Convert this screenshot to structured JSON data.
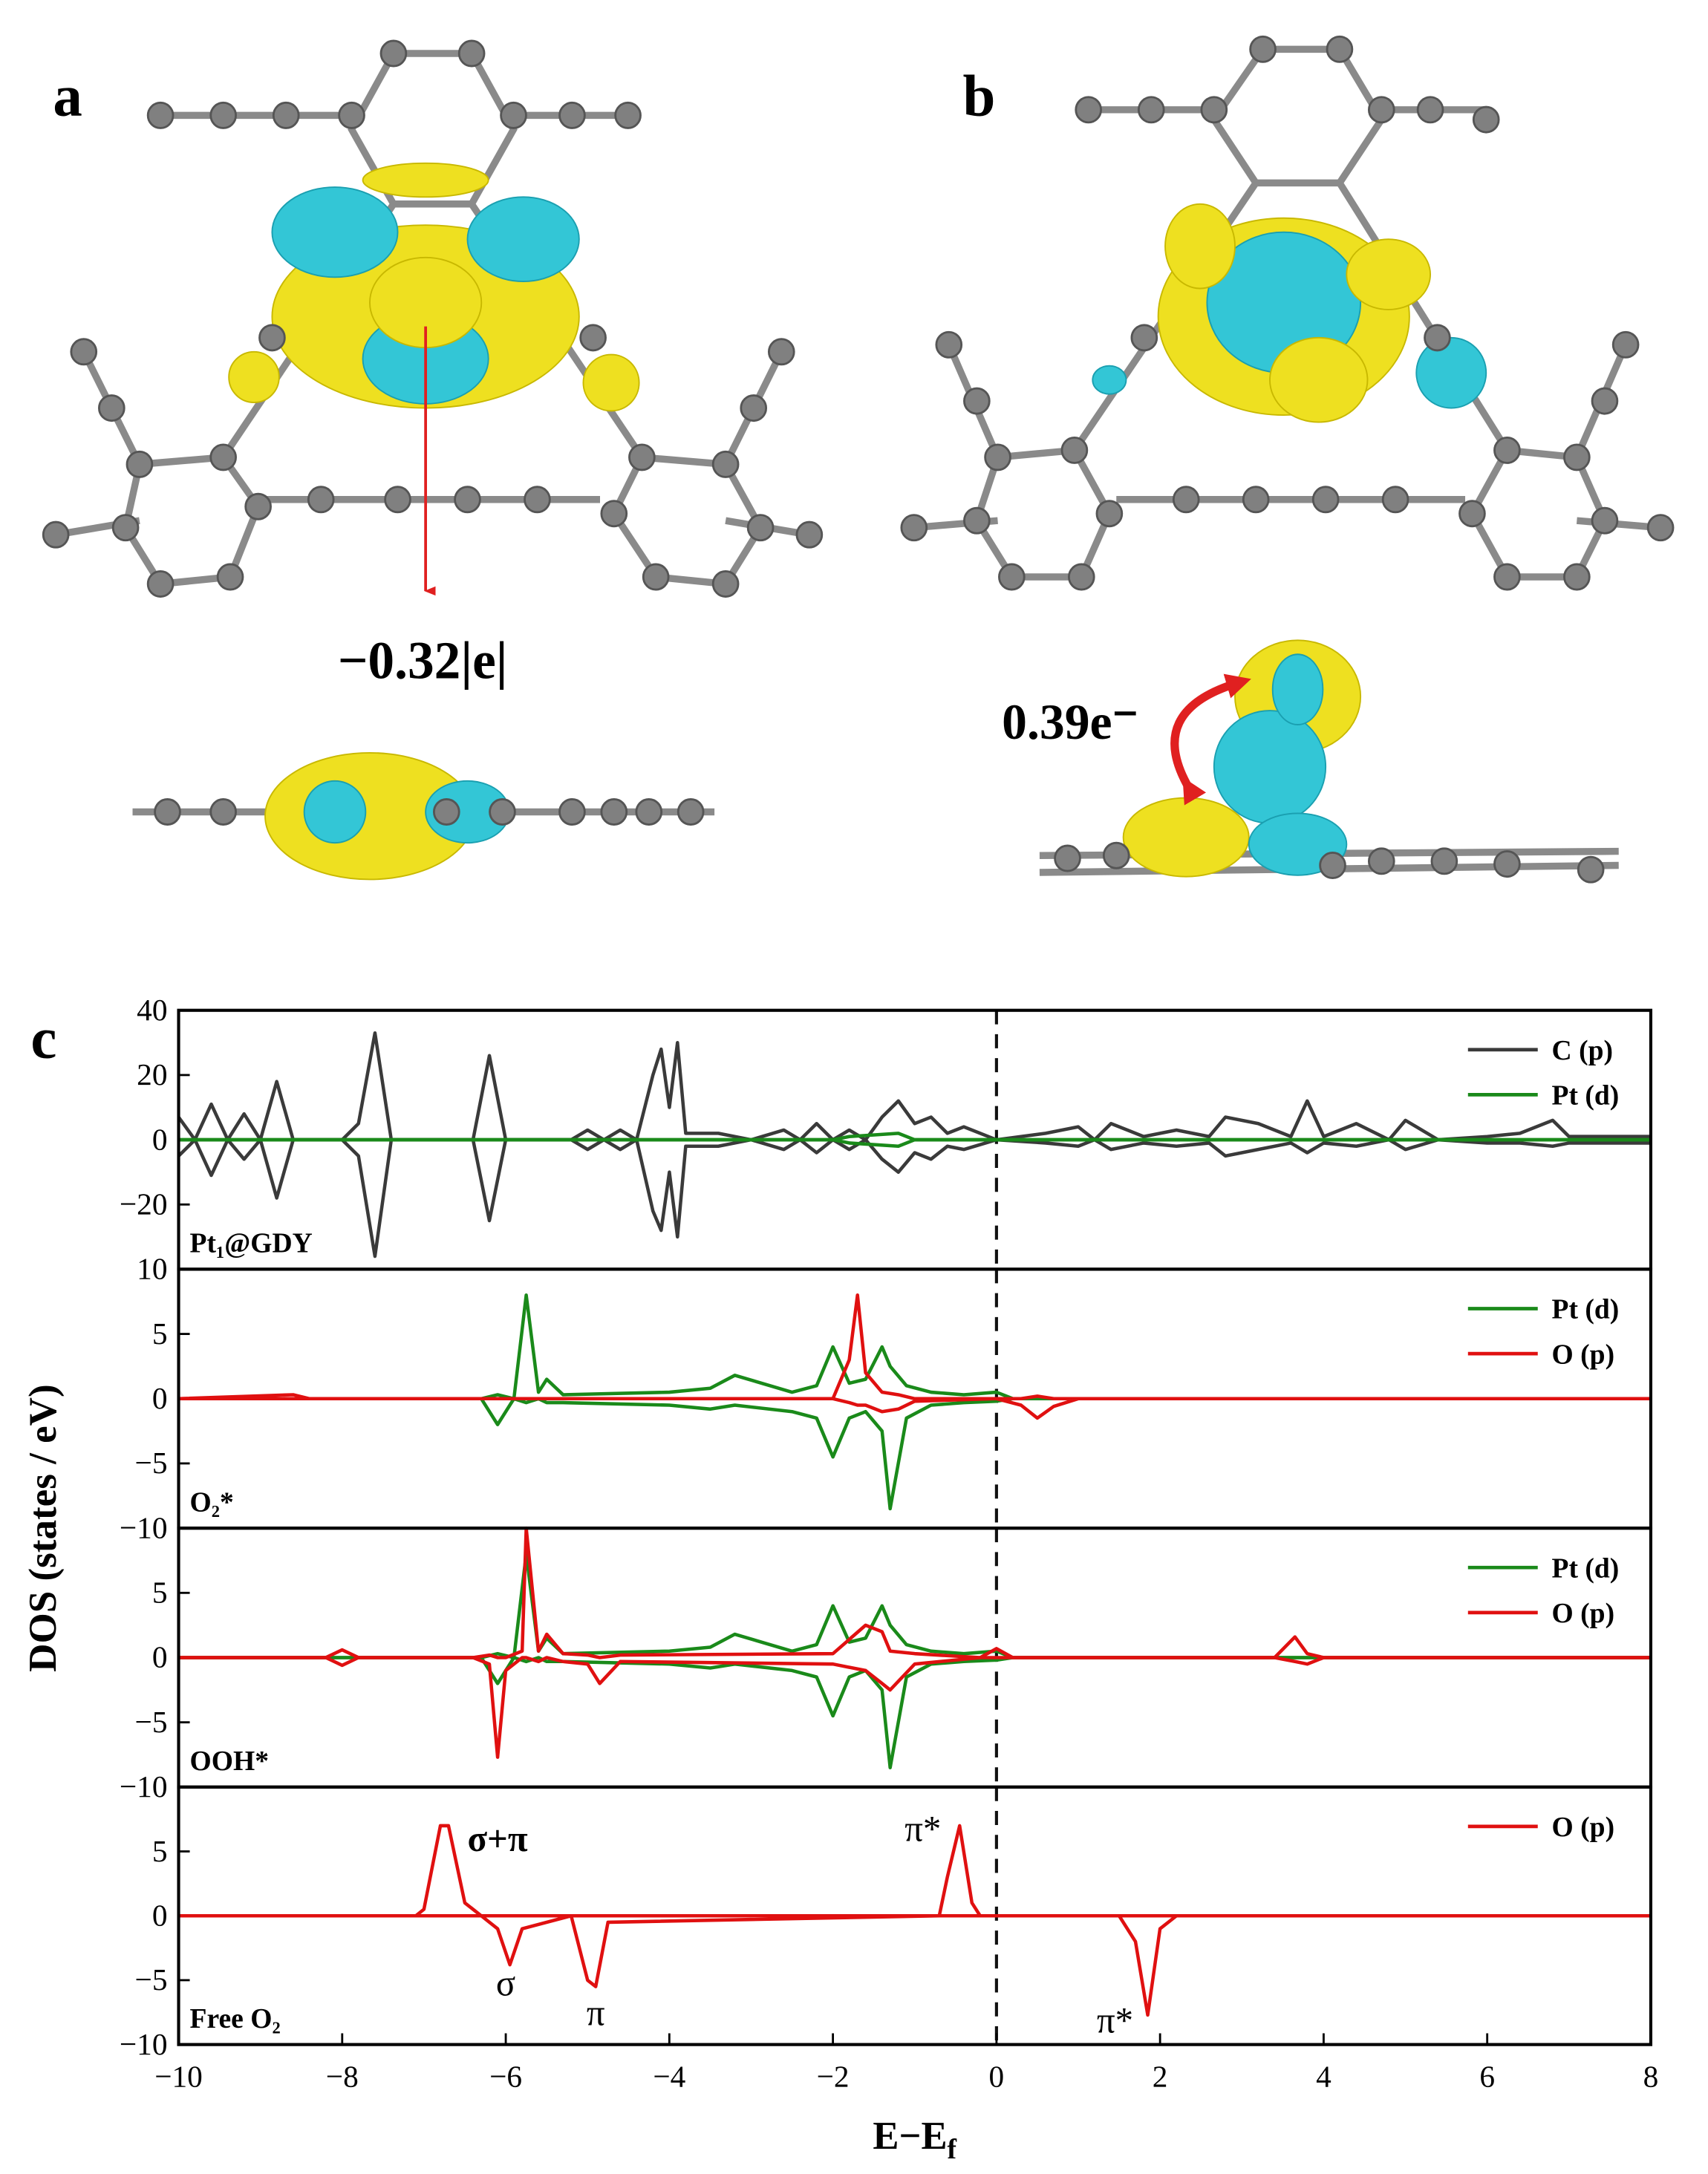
{
  "panel_labels": [
    "a",
    "b",
    "c"
  ],
  "charges": [
    "−0.32|e|",
    "0.39e⁻"
  ],
  "ylabel": "DOS (states / eV)",
  "chart_data": [
    {
      "type": "line",
      "label": "Pt₁@GDY",
      "xlim": [
        -10,
        8
      ],
      "ylim": [
        -40,
        40
      ],
      "yticks": [
        40,
        20,
        0,
        {
          "value": -20,
          "label": "−20"
        }
      ],
      "vline": 0,
      "series": [
        {
          "name": "C (p)",
          "color": "#3a3a3a",
          "x": [
            -10,
            -9.8,
            -9.6,
            -9.4,
            -9.2,
            -9.0,
            -8.8,
            -8.6,
            -8.0,
            -7.8,
            -7.6,
            -7.4,
            -6.4,
            -6.2,
            -6.0,
            -5.2,
            -5.0,
            -4.8,
            -4.6,
            -4.4,
            -4.2,
            -4.1,
            -4.0,
            -3.9,
            -3.8,
            -3.4,
            -3.0,
            -2.6,
            -2.4,
            -2.2,
            -2.0,
            -1.8,
            -1.6,
            -1.4,
            -1.2,
            -1.0,
            -0.8,
            -0.6,
            -0.4,
            0,
            0.6,
            1.0,
            1.2,
            1.4,
            1.8,
            2.2,
            2.6,
            2.8,
            3.2,
            3.6,
            3.8,
            4.0,
            4.4,
            4.8,
            5.0,
            5.4,
            6.0,
            6.4,
            6.8,
            7.0,
            8
          ],
          "up": [
            7,
            0,
            11,
            0,
            8,
            0,
            18,
            0,
            0,
            5,
            33,
            0,
            0,
            26,
            0,
            0,
            3,
            0,
            3,
            0,
            20,
            28,
            10,
            30,
            2,
            2,
            0,
            3,
            0,
            5,
            0,
            3,
            0,
            7,
            12,
            5,
            7,
            2,
            4,
            0,
            2,
            4,
            0,
            5,
            1,
            3,
            1,
            7,
            5,
            1,
            12,
            1,
            5,
            0,
            6,
            0,
            1,
            2,
            6,
            1,
            1
          ],
          "down": [
            -5,
            0,
            -11,
            0,
            -6,
            0,
            -18,
            0,
            0,
            -5,
            -36,
            0,
            0,
            -25,
            0,
            0,
            -3,
            0,
            -3,
            0,
            -22,
            -28,
            -10,
            -30,
            -2,
            -2,
            0,
            -3,
            0,
            -4,
            0,
            -3,
            0,
            -6,
            -10,
            -4,
            -6,
            -2,
            -3,
            0,
            -1,
            -2,
            0,
            -3,
            -1,
            -2,
            -1,
            -5,
            -3,
            -1,
            -4,
            -1,
            -2,
            0,
            -3,
            0,
            -1,
            -1,
            -2,
            -1,
            -1
          ]
        },
        {
          "name": "Pt (d)",
          "color": "#1a8a1a",
          "x": [
            -10,
            -2,
            -1.8,
            -1.2,
            -1,
            0,
            8
          ],
          "up": [
            0,
            0,
            1,
            2,
            0,
            0,
            0
          ],
          "down": [
            0,
            0,
            -1,
            -2,
            0,
            0,
            0
          ]
        }
      ]
    },
    {
      "type": "line",
      "label": "O₂*",
      "xlim": [
        -10,
        8
      ],
      "ylim": [
        -10,
        10
      ],
      "yticks": [
        10,
        5,
        0,
        {
          "value": -5,
          "label": "−5"
        },
        {
          "value": -10,
          "label": "−10"
        }
      ],
      "vline": 0,
      "series": [
        {
          "name": "Pt (d)",
          "color": "#1a8a1a",
          "x": [
            -10,
            -6.3,
            -6.1,
            -5.9,
            -5.75,
            -5.6,
            -5.5,
            -5.3,
            -4,
            -3.5,
            -3.2,
            -2.5,
            -2.2,
            -2.0,
            -1.8,
            -1.6,
            -1.4,
            -1.3,
            -1.1,
            -0.8,
            -0.4,
            0,
            0.2,
            8
          ],
          "up": [
            0,
            0,
            0.3,
            0,
            8,
            0.5,
            1.5,
            0.3,
            0.5,
            0.8,
            1.8,
            0.5,
            1,
            4,
            1.2,
            1.5,
            4,
            2.5,
            1,
            0.5,
            0.3,
            0.5,
            0,
            0
          ],
          "down": [
            0,
            0,
            -2,
            0,
            -0.3,
            0,
            -0.3,
            -0.3,
            -0.5,
            -0.8,
            -0.5,
            -1,
            -1.5,
            -4.5,
            -1.5,
            -1,
            -2.5,
            -8.5,
            -1.5,
            -0.5,
            -0.3,
            -0.2,
            0,
            0
          ]
        },
        {
          "name": "O (p)",
          "color": "#e01010",
          "x": [
            -10,
            -8.6,
            -8.4,
            -2.0,
            -1.8,
            -1.7,
            -1.6,
            -1.4,
            -1.2,
            -1.0,
            0,
            0.3,
            0.5,
            0.7,
            1,
            8
          ],
          "up": [
            0,
            0.3,
            0,
            0,
            3,
            8,
            2,
            0.5,
            0.3,
            0,
            0,
            0,
            0.2,
            0,
            0,
            0
          ],
          "down": [
            0,
            0,
            0,
            0,
            -0.3,
            -0.5,
            -0.5,
            -1,
            -0.8,
            -0.2,
            0,
            -0.5,
            -1.5,
            -0.6,
            0,
            0
          ]
        }
      ]
    },
    {
      "type": "line",
      "label": "OOH*",
      "xlim": [
        -10,
        8
      ],
      "ylim": [
        -10,
        10
      ],
      "yticks": [
        5,
        0,
        {
          "value": -5,
          "label": "−5"
        },
        {
          "value": -10,
          "label": "−10"
        }
      ],
      "vline": 0,
      "series": [
        {
          "name": "Pt (d)",
          "color": "#1a8a1a",
          "x": [
            -10,
            -6.3,
            -6.1,
            -5.9,
            -5.75,
            -5.6,
            -5.5,
            -5.3,
            -4,
            -3.5,
            -3.2,
            -2.5,
            -2.2,
            -2.0,
            -1.8,
            -1.6,
            -1.4,
            -1.3,
            -1.1,
            -0.8,
            -0.4,
            0,
            0.2,
            8
          ],
          "up": [
            0,
            0,
            0.3,
            0,
            8,
            0.5,
            1.5,
            0.3,
            0.5,
            0.8,
            1.8,
            0.5,
            1,
            4,
            1.2,
            1.5,
            4,
            2.5,
            1,
            0.5,
            0.3,
            0.5,
            0,
            0
          ],
          "down": [
            0,
            0,
            -2,
            0,
            -0.3,
            0,
            -0.3,
            -0.3,
            -0.5,
            -0.8,
            -0.5,
            -1,
            -1.5,
            -4.5,
            -1.5,
            -1,
            -2.5,
            -8.5,
            -1.5,
            -0.5,
            -0.3,
            -0.2,
            0,
            0
          ]
        },
        {
          "name": "O (p)",
          "color": "#e01010",
          "x": [
            -10,
            -8.2,
            -8.0,
            -7.8,
            -6.4,
            -6.2,
            -6.1,
            -6.0,
            -5.8,
            -5.75,
            -5.6,
            -5.5,
            -5.3,
            -5.0,
            -4.85,
            -4.6,
            -2.0,
            -1.6,
            -1.4,
            -1.3,
            -1.0,
            -0.2,
            0,
            0.2,
            3.4,
            3.65,
            3.8,
            4,
            8
          ],
          "up": [
            0,
            0,
            0.6,
            0,
            0,
            0.2,
            0,
            0,
            0.5,
            10,
            0.5,
            1.8,
            0.3,
            0.2,
            0,
            0.2,
            0.3,
            2.5,
            2,
            0.5,
            0.3,
            0,
            0.7,
            0,
            0,
            1.6,
            0.3,
            0,
            0
          ],
          "down": [
            0,
            0,
            -0.6,
            0,
            0,
            -0.5,
            -7.7,
            -1,
            0,
            0,
            -0.3,
            0,
            -0.3,
            -0.5,
            -2,
            -0.3,
            -0.5,
            -1,
            -2,
            -2.5,
            -0.5,
            0,
            0,
            0,
            0,
            -0.3,
            -0.5,
            0,
            0
          ]
        }
      ]
    },
    {
      "type": "line",
      "label": "Free O₂",
      "xlim": [
        -10,
        8
      ],
      "ylim": [
        -10,
        10
      ],
      "yticks": [
        5,
        0,
        {
          "value": -5,
          "label": "−5"
        },
        {
          "value": -10,
          "label": "−10"
        }
      ],
      "vline": 0,
      "xticks": [
        {
          "value": -10,
          "label": "−10"
        },
        {
          "value": -8,
          "label": "−8"
        },
        {
          "value": -6,
          "label": "−6"
        },
        {
          "value": -4,
          "label": "−4"
        },
        {
          "value": -2,
          "label": "−2"
        },
        0,
        2,
        4,
        6,
        8
      ],
      "xlabel": {
        "main": "E−E",
        "sub": "f"
      },
      "annotations": [
        "σ+π",
        "σ",
        "π",
        "π*",
        "π*"
      ],
      "series": [
        {
          "name": "O (p)",
          "color": "#e01010",
          "x": [
            -10,
            -7.1,
            -7.0,
            -6.8,
            -6.7,
            -6.5,
            -6.3,
            -6.1,
            -5.95,
            -5.8,
            -5.2,
            -5.0,
            -4.9,
            -4.75,
            -0.7,
            -0.6,
            -0.45,
            -0.3,
            -0.2,
            1.5,
            1.7,
            1.85,
            2.0,
            2.2,
            8
          ],
          "up": [
            0,
            0,
            0.5,
            7,
            7,
            1,
            0,
            0,
            0,
            0,
            0,
            0,
            0,
            0,
            0,
            3,
            7,
            1,
            0,
            0,
            0,
            0,
            0,
            0,
            0
          ],
          "down": [
            0,
            0,
            0,
            0,
            0,
            0,
            0,
            -1,
            -3.8,
            -1,
            0,
            -5,
            -5.5,
            -0.5,
            0,
            0,
            0,
            0,
            0,
            0,
            -2,
            -7.7,
            -1,
            0,
            0
          ]
        }
      ]
    }
  ]
}
